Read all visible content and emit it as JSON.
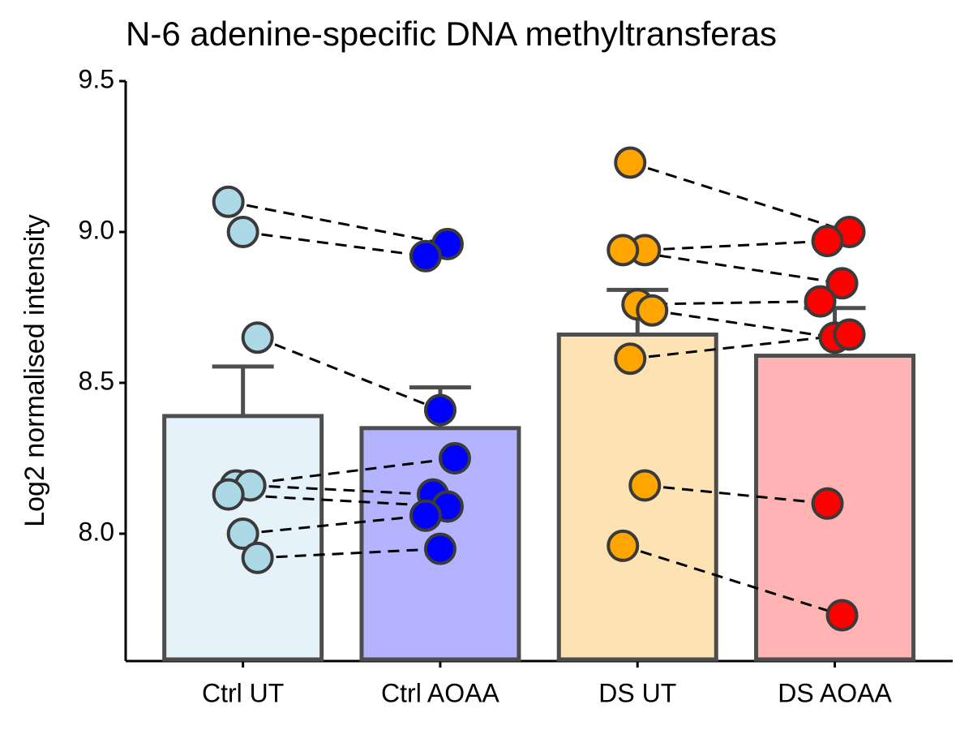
{
  "chart_data": {
    "type": "bar",
    "title": "N-6 adenine-specific DNA methyltransferas",
    "y_label": "Log2 normalised intensity",
    "categories": [
      "Ctrl UT",
      "Ctrl AOAA",
      "DS UT",
      "DS AOAA"
    ],
    "values": [
      8.39,
      8.35,
      8.66,
      8.59
    ],
    "errors": [
      0.164,
      0.135,
      0.148,
      0.158
    ],
    "colors": [
      "#e6f2f9",
      "#b3b3ff",
      "#fde3b4",
      "#ffb3b3"
    ],
    "point_colors": [
      "#add8e6",
      "#0000ff",
      "#ffa500",
      "#ff0000"
    ],
    "points": [
      [
        9.1,
        9.0,
        8.65,
        8.16,
        8.16,
        8.13,
        8.0,
        7.92
      ],
      [
        8.96,
        8.92,
        8.41,
        8.25,
        8.13,
        8.09,
        8.06,
        7.95
      ],
      [
        9.23,
        8.94,
        8.94,
        8.76,
        8.74,
        8.58,
        8.16,
        7.96
      ],
      [
        9.0,
        8.97,
        8.83,
        8.77,
        8.65,
        8.66,
        8.1,
        7.73
      ]
    ],
    "paired_groups": [
      [
        0,
        1
      ],
      [
        2,
        3
      ]
    ],
    "ylim": [
      7.578,
      9.5
    ],
    "yticks": [
      {
        "value": 8,
        "label": "8.0"
      },
      8.5,
      {
        "value": 9,
        "label": "9.0"
      },
      9.5
    ]
  }
}
